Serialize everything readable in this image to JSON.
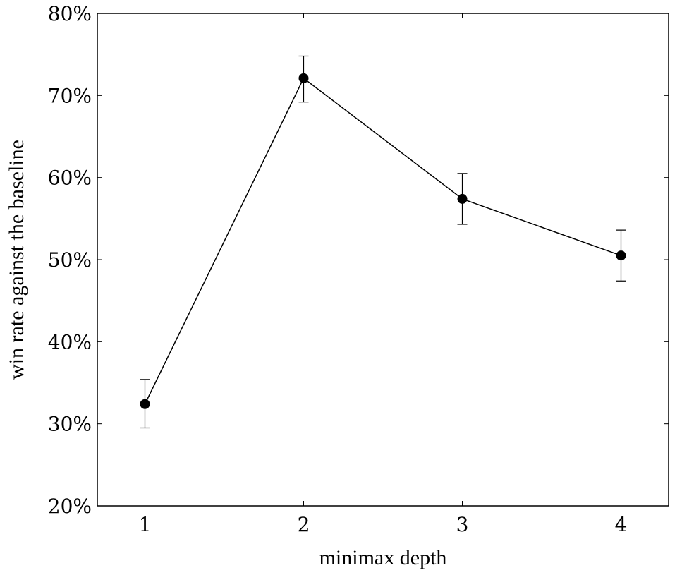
{
  "chart_data": {
    "type": "line",
    "title": "",
    "xlabel": "minimax depth",
    "ylabel": "win rate against the baseline",
    "x": [
      1,
      2,
      3,
      4
    ],
    "x_tick_labels": [
      "1",
      "2",
      "3",
      "4"
    ],
    "xlim": [
      0.7,
      4.3
    ],
    "ylim": [
      20,
      80
    ],
    "y_ticks": [
      20,
      30,
      40,
      50,
      60,
      70,
      80
    ],
    "y_tick_labels": [
      "20%",
      "30%",
      "40%",
      "50%",
      "60%",
      "70%",
      "80%"
    ],
    "grid": false,
    "legend": null,
    "series": [
      {
        "name": "win rate",
        "values": [
          32.4,
          72.1,
          57.4,
          50.5
        ],
        "error_low": [
          29.5,
          69.2,
          54.3,
          47.4
        ],
        "error_high": [
          35.4,
          74.8,
          60.5,
          53.6
        ],
        "color": "#000000",
        "marker": "filled-circle"
      }
    ]
  }
}
